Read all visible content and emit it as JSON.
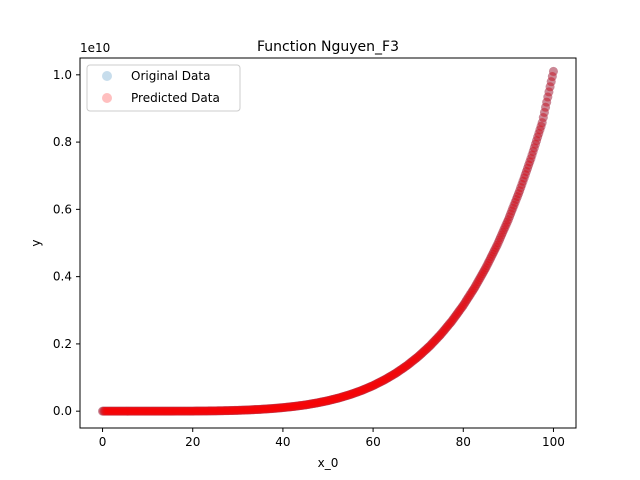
{
  "chart_data": {
    "type": "scatter",
    "title": "Function Nguyen_F3",
    "xlabel": "x_0",
    "ylabel": "y",
    "y_scale_label": "1e10",
    "xlim": [
      -5,
      105
    ],
    "ylim": [
      -0.05,
      1.05
    ],
    "x_ticks": [
      0,
      20,
      40,
      60,
      80,
      100
    ],
    "x_tick_labels": [
      "0",
      "20",
      "40",
      "60",
      "80",
      "100"
    ],
    "y_ticks": [
      0.0,
      0.2,
      0.4,
      0.6,
      0.8,
      1.0
    ],
    "y_tick_labels": [
      "0.0",
      "0.2",
      "0.4",
      "0.6",
      "0.8",
      "1.0"
    ],
    "grid": false,
    "legend_position": "top-left",
    "series": [
      {
        "name": "Original Data",
        "color": "#1f77b4",
        "x": [
          0,
          2.5,
          5,
          7.5,
          10,
          12.5,
          15,
          17.5,
          20,
          22.5,
          25,
          27.5,
          30,
          32.5,
          35,
          37.5,
          40,
          42.5,
          45,
          47.5,
          50,
          52.5,
          55,
          57.5,
          60,
          62.5,
          65,
          67.5,
          70,
          72.5,
          75,
          77.5,
          80,
          82.5,
          85,
          87.5,
          90,
          92.5,
          95,
          97.5,
          100
        ],
        "y": [
          0.0,
          0.0,
          0.0,
          0.0,
          0.0,
          0.0,
          0.0001,
          0.0002,
          0.0003,
          0.0006,
          0.001,
          0.0016,
          0.0025,
          0.0038,
          0.0055,
          0.0077,
          0.0106,
          0.0142,
          0.0187,
          0.0244,
          0.0313,
          0.0397,
          0.0498,
          0.0618,
          0.0761,
          0.093,
          0.1126,
          0.1356,
          0.1622,
          0.1928,
          0.2281,
          0.2684,
          0.3145,
          0.3669,
          0.4263,
          0.4934,
          0.5695,
          0.6551,
          0.7509,
          0.8577,
          1.0101
        ]
      },
      {
        "name": "Predicted Data",
        "color": "#ff0000",
        "x": [
          0,
          2.5,
          5,
          7.5,
          10,
          12.5,
          15,
          17.5,
          20,
          22.5,
          25,
          27.5,
          30,
          32.5,
          35,
          37.5,
          40,
          42.5,
          45,
          47.5,
          50,
          52.5,
          55,
          57.5,
          60,
          62.5,
          65,
          67.5,
          70,
          72.5,
          75,
          77.5,
          80,
          82.5,
          85,
          87.5,
          90,
          92.5,
          95,
          97.5,
          100
        ],
        "y": [
          0.0,
          0.0,
          0.0,
          0.0,
          0.0,
          0.0,
          0.0001,
          0.0002,
          0.0003,
          0.0006,
          0.001,
          0.0016,
          0.0025,
          0.0038,
          0.0055,
          0.0077,
          0.0106,
          0.0142,
          0.0187,
          0.0244,
          0.0313,
          0.0397,
          0.0498,
          0.0618,
          0.0761,
          0.093,
          0.1126,
          0.1356,
          0.1622,
          0.1928,
          0.2281,
          0.2684,
          0.3145,
          0.3669,
          0.4263,
          0.4934,
          0.5695,
          0.6551,
          0.7509,
          0.8577,
          1.0101
        ]
      }
    ]
  }
}
